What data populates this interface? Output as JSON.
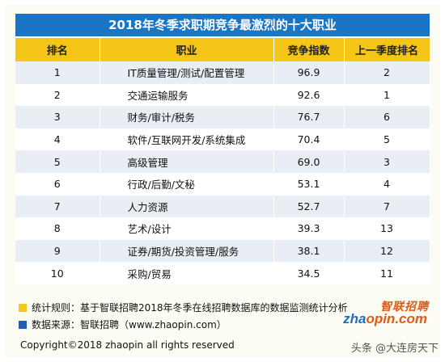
{
  "title": "2018年冬季求职期竞争最激烈的十大职业",
  "headers": [
    "排名",
    "职业",
    "竞争指数",
    "上一季度排名"
  ],
  "rows": [
    {
      "rank": "1",
      "job": "IT质量管理/测试/配置管理",
      "index": "96.9",
      "prev": "2"
    },
    {
      "rank": "2",
      "job": "交通运输服务",
      "index": "92.6",
      "prev": "1"
    },
    {
      "rank": "3",
      "job": "财务/审计/税务",
      "index": "76.7",
      "prev": "6"
    },
    {
      "rank": "4",
      "job": "软件/互联网开发/系统集成",
      "index": "70.4",
      "prev": "5"
    },
    {
      "rank": "5",
      "job": "高级管理",
      "index": "69.0",
      "prev": "3"
    },
    {
      "rank": "6",
      "job": "行政/后勤/文秘",
      "index": "53.1",
      "prev": "4"
    },
    {
      "rank": "7",
      "job": "人力资源",
      "index": "52.7",
      "prev": "7"
    },
    {
      "rank": "8",
      "job": "艺术/设计",
      "index": "39.3",
      "prev": "13"
    },
    {
      "rank": "9",
      "job": "证券/期货/投资管理/服务",
      "index": "38.1",
      "prev": "12"
    },
    {
      "rank": "10",
      "job": "采购/贸易",
      "index": "34.5",
      "prev": "11"
    }
  ],
  "notes": {
    "rule": "统计规则：基于智联招聘2018年冬季在线招聘数据库的数据监测统计分析",
    "source": "数据来源：智联招聘（www.zhaopin.com）"
  },
  "copyright": "Copyright©2018 zhaopin all rights reserved",
  "logo": {
    "cn": "智联招聘",
    "en_prefix": "zha",
    "en_rest": "opin.com"
  },
  "watermark": "头条 @大连房天下",
  "colors": {
    "title_bg": "#1a75c4",
    "header_bg": "#f5c518",
    "row_alt": "#e8eef3",
    "logo": "#e05a12"
  }
}
